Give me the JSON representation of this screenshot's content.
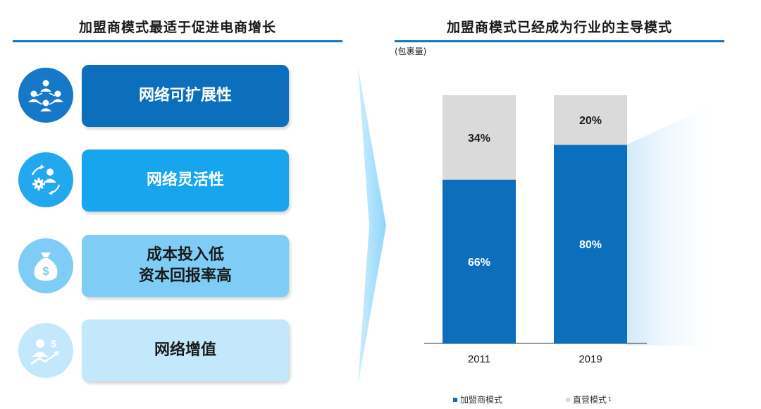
{
  "left_panel": {
    "title": "加盟商模式最适于促进电商增长",
    "items": [
      {
        "icon": "network-people-icon",
        "lines": [
          "网络可扩展性"
        ],
        "bg": "#0b6fbe",
        "fg": "#ffffff",
        "icon_bg": "#1678c8"
      },
      {
        "icon": "person-gear-cycle-icon",
        "lines": [
          "网络灵活性"
        ],
        "bg": "#17a6ee",
        "fg": "#ffffff",
        "icon_bg": "#22a8ee"
      },
      {
        "icon": "money-bag-icon",
        "lines": [
          "成本投入低",
          "资本回报率高"
        ],
        "bg": "#7fcdf6",
        "fg": "#1a1a1a",
        "icon_bg": "#7fcdf6"
      },
      {
        "icon": "person-dollar-growth-icon",
        "lines": [
          "网络增值"
        ],
        "bg": "#c4e8fb",
        "fg": "#1a1a1a",
        "icon_bg": "#c4e8fb"
      }
    ]
  },
  "right_panel": {
    "title": "加盟商模式已经成为行业的主导模式",
    "unit_label": "(包裹量)",
    "legend": [
      {
        "label": "加盟商模式",
        "color": "#0b6fbe",
        "superscript": ""
      },
      {
        "label": "直营模式",
        "color": "#dadada",
        "superscript": "1"
      }
    ]
  },
  "chart_data": {
    "type": "bar",
    "stacked": true,
    "categories": [
      "2011",
      "2019"
    ],
    "series": [
      {
        "name": "加盟商模式",
        "values": [
          66,
          80
        ],
        "labels": [
          "66%",
          "80%"
        ],
        "color": "#0b6fbe"
      },
      {
        "name": "直营模式",
        "values": [
          34,
          20
        ],
        "labels": [
          "34%",
          "20%"
        ],
        "color": "#dadada"
      }
    ],
    "ylim": [
      0,
      100
    ],
    "grid": false,
    "legend_position": "bottom"
  },
  "colors": {
    "accent": "#1675c5",
    "arrow": "#7fcdf6"
  }
}
